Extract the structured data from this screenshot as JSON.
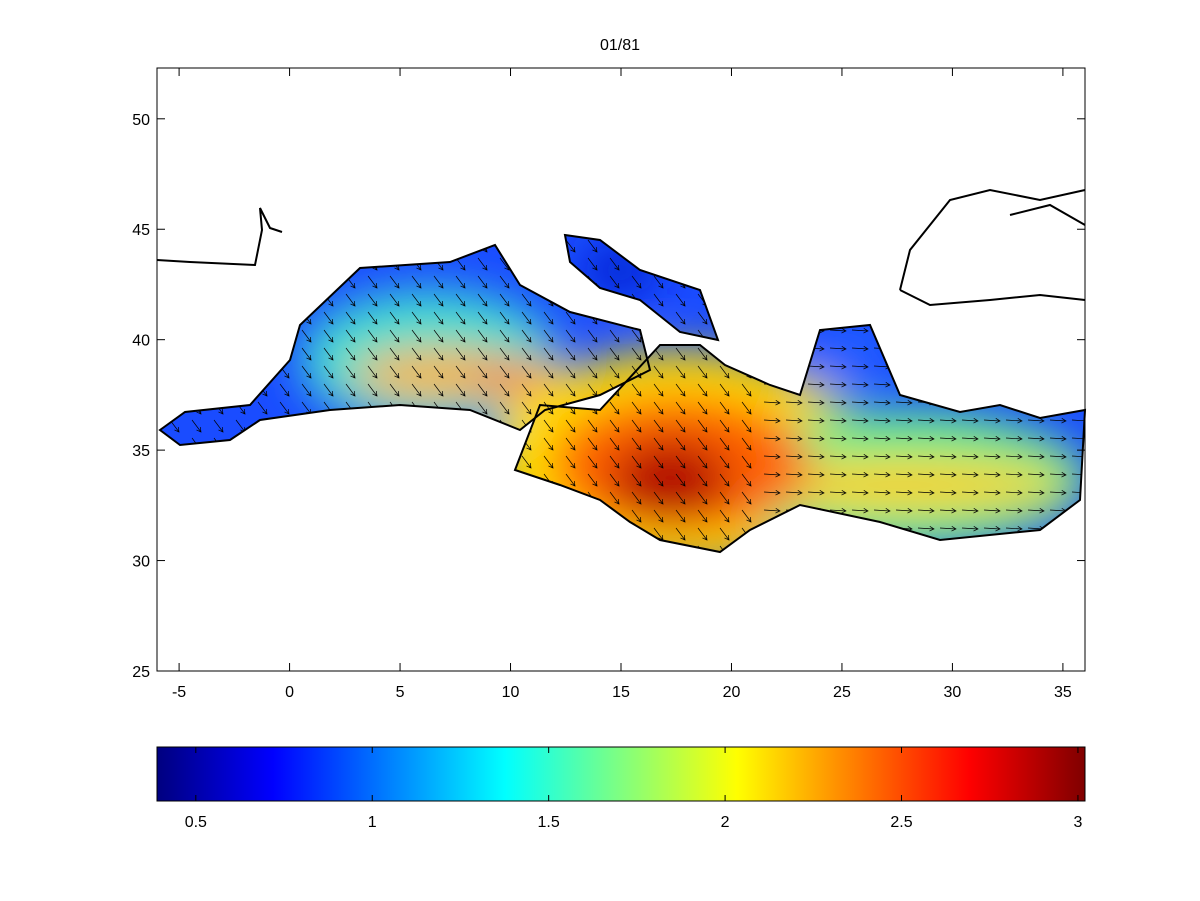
{
  "chart_data": {
    "type": "map",
    "title": "01/81",
    "xlim": [
      -6,
      36
    ],
    "xticks": [
      -5,
      0,
      5,
      10,
      15,
      20,
      25,
      30,
      35
    ],
    "ylim": [
      25,
      52.3
    ],
    "yticks": [
      25,
      30,
      35,
      40,
      45,
      50
    ],
    "colorbar": {
      "colormap": "jet",
      "lim": [
        0.39,
        3.02
      ],
      "ticks": [
        0.5,
        1,
        1.5,
        2,
        2.5,
        3
      ]
    }
  }
}
